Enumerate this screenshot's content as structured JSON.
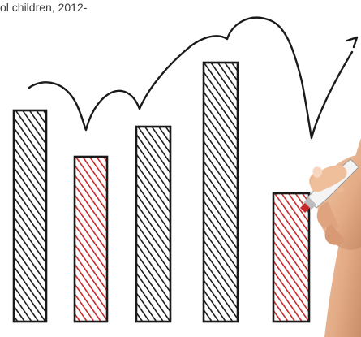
{
  "caption": {
    "text": "ol children, 2012-"
  },
  "illustration": {
    "subject": "hand-drawn bar chart with hand holding marker",
    "colors": {
      "ink": "#1a1a1a",
      "red": "#c8282a",
      "marker_body": "#f2f2f2",
      "skin": "#e8b896"
    },
    "bars": [
      {
        "color": "ink"
      },
      {
        "color": "red"
      },
      {
        "color": "ink"
      },
      {
        "color": "ink"
      },
      {
        "color": "red"
      }
    ]
  }
}
